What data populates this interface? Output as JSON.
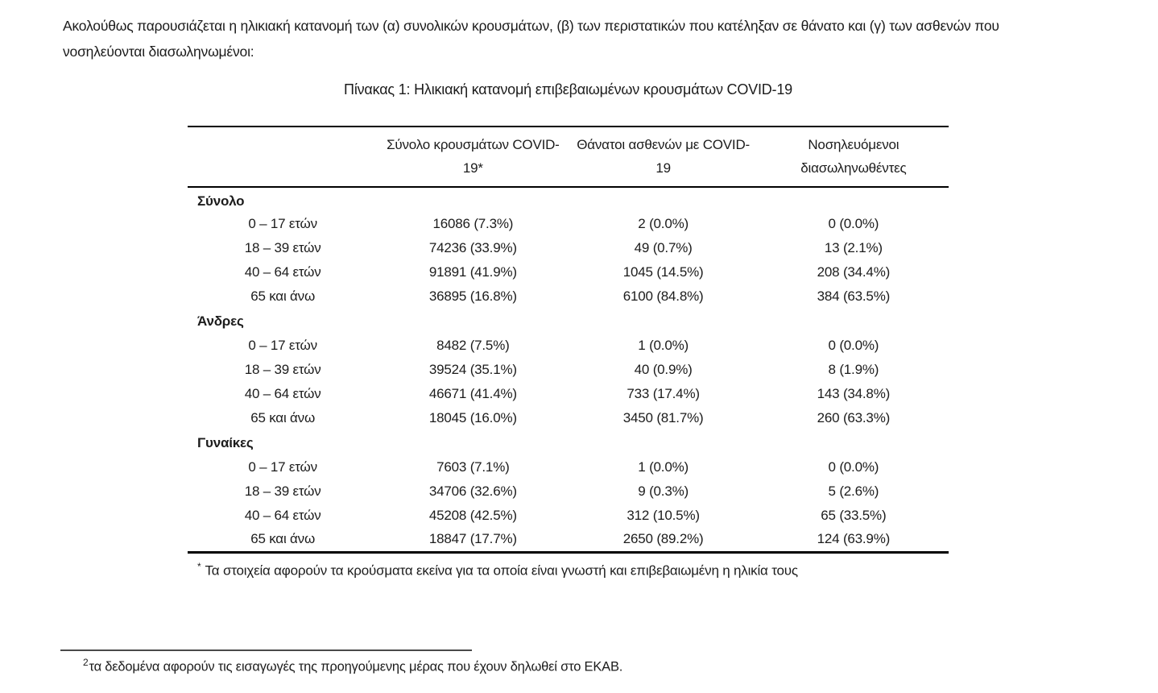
{
  "page": {
    "intro": "Ακολούθως παρουσιάζεται η ηλικιακή κατανομή των (α) συνολικών κρουσμάτων, (β) των περιστατικών που κατέληξαν σε θάνατο και (γ) των ασθενών που νοσηλεύονται διασωληνωμένοι:",
    "bottom_footnote": {
      "marker": "2",
      "text": "τα δεδομένα αφορούν τις εισαγωγές της προηγούμενης μέρας που έχουν δηλωθεί στο ΕΚΑΒ."
    }
  },
  "table": {
    "title": "Πίνακας 1: Ηλικιακή κατανομή επιβεβαιωμένων κρουσμάτων COVID-19",
    "columns": [
      "Σύνολο κρουσμάτων COVID-19*",
      "Θάνατοι ασθενών με COVID-19",
      "Νοσηλευόμενοι διασωληνωθέντες"
    ],
    "sections": [
      {
        "label": "Σύνολο",
        "rows": [
          {
            "age": "0 – 17 ετών",
            "cases": "16086 (7.3%)",
            "deaths": "2 (0.0%)",
            "intubated": "0 (0.0%)"
          },
          {
            "age": "18 – 39 ετών",
            "cases": "74236 (33.9%)",
            "deaths": "49 (0.7%)",
            "intubated": "13 (2.1%)"
          },
          {
            "age": "40 – 64 ετών",
            "cases": "91891 (41.9%)",
            "deaths": "1045 (14.5%)",
            "intubated": "208 (34.4%)"
          },
          {
            "age": "65 και άνω",
            "cases": "36895 (16.8%)",
            "deaths": "6100 (84.8%)",
            "intubated": "384 (63.5%)"
          }
        ]
      },
      {
        "label": "Άνδρες",
        "rows": [
          {
            "age": "0 – 17 ετών",
            "cases": "8482 (7.5%)",
            "deaths": "1 (0.0%)",
            "intubated": "0 (0.0%)"
          },
          {
            "age": "18 – 39 ετών",
            "cases": "39524 (35.1%)",
            "deaths": "40 (0.9%)",
            "intubated": "8 (1.9%)"
          },
          {
            "age": "40 – 64 ετών",
            "cases": "46671 (41.4%)",
            "deaths": "733 (17.4%)",
            "intubated": "143 (34.8%)"
          },
          {
            "age": "65 και άνω",
            "cases": "18045 (16.0%)",
            "deaths": "3450 (81.7%)",
            "intubated": "260 (63.3%)"
          }
        ]
      },
      {
        "label": "Γυναίκες",
        "rows": [
          {
            "age": "0 – 17 ετών",
            "cases": "7603 (7.1%)",
            "deaths": "1 (0.0%)",
            "intubated": "0 (0.0%)"
          },
          {
            "age": "18 – 39 ετών",
            "cases": "34706 (32.6%)",
            "deaths": "9 (0.3%)",
            "intubated": "5 (2.6%)"
          },
          {
            "age": "40 – 64 ετών",
            "cases": "45208 (42.5%)",
            "deaths": "312 (10.5%)",
            "intubated": "65 (33.5%)"
          },
          {
            "age": "65 και άνω",
            "cases": "18847 (17.7%)",
            "deaths": "2650 (89.2%)",
            "intubated": "124 (63.9%)"
          }
        ]
      }
    ],
    "footnote": {
      "marker": "*",
      "text": "Τα στοιχεία αφορούν τα κρούσματα εκείνα για τα οποία είναι γνωστή και επιβεβαιωμένη η ηλικία τους"
    }
  },
  "colors": {
    "text": "#1c1c1c",
    "table_rule": "#000000",
    "separator_rule": "#4a4a4a",
    "background": "#ffffff"
  }
}
